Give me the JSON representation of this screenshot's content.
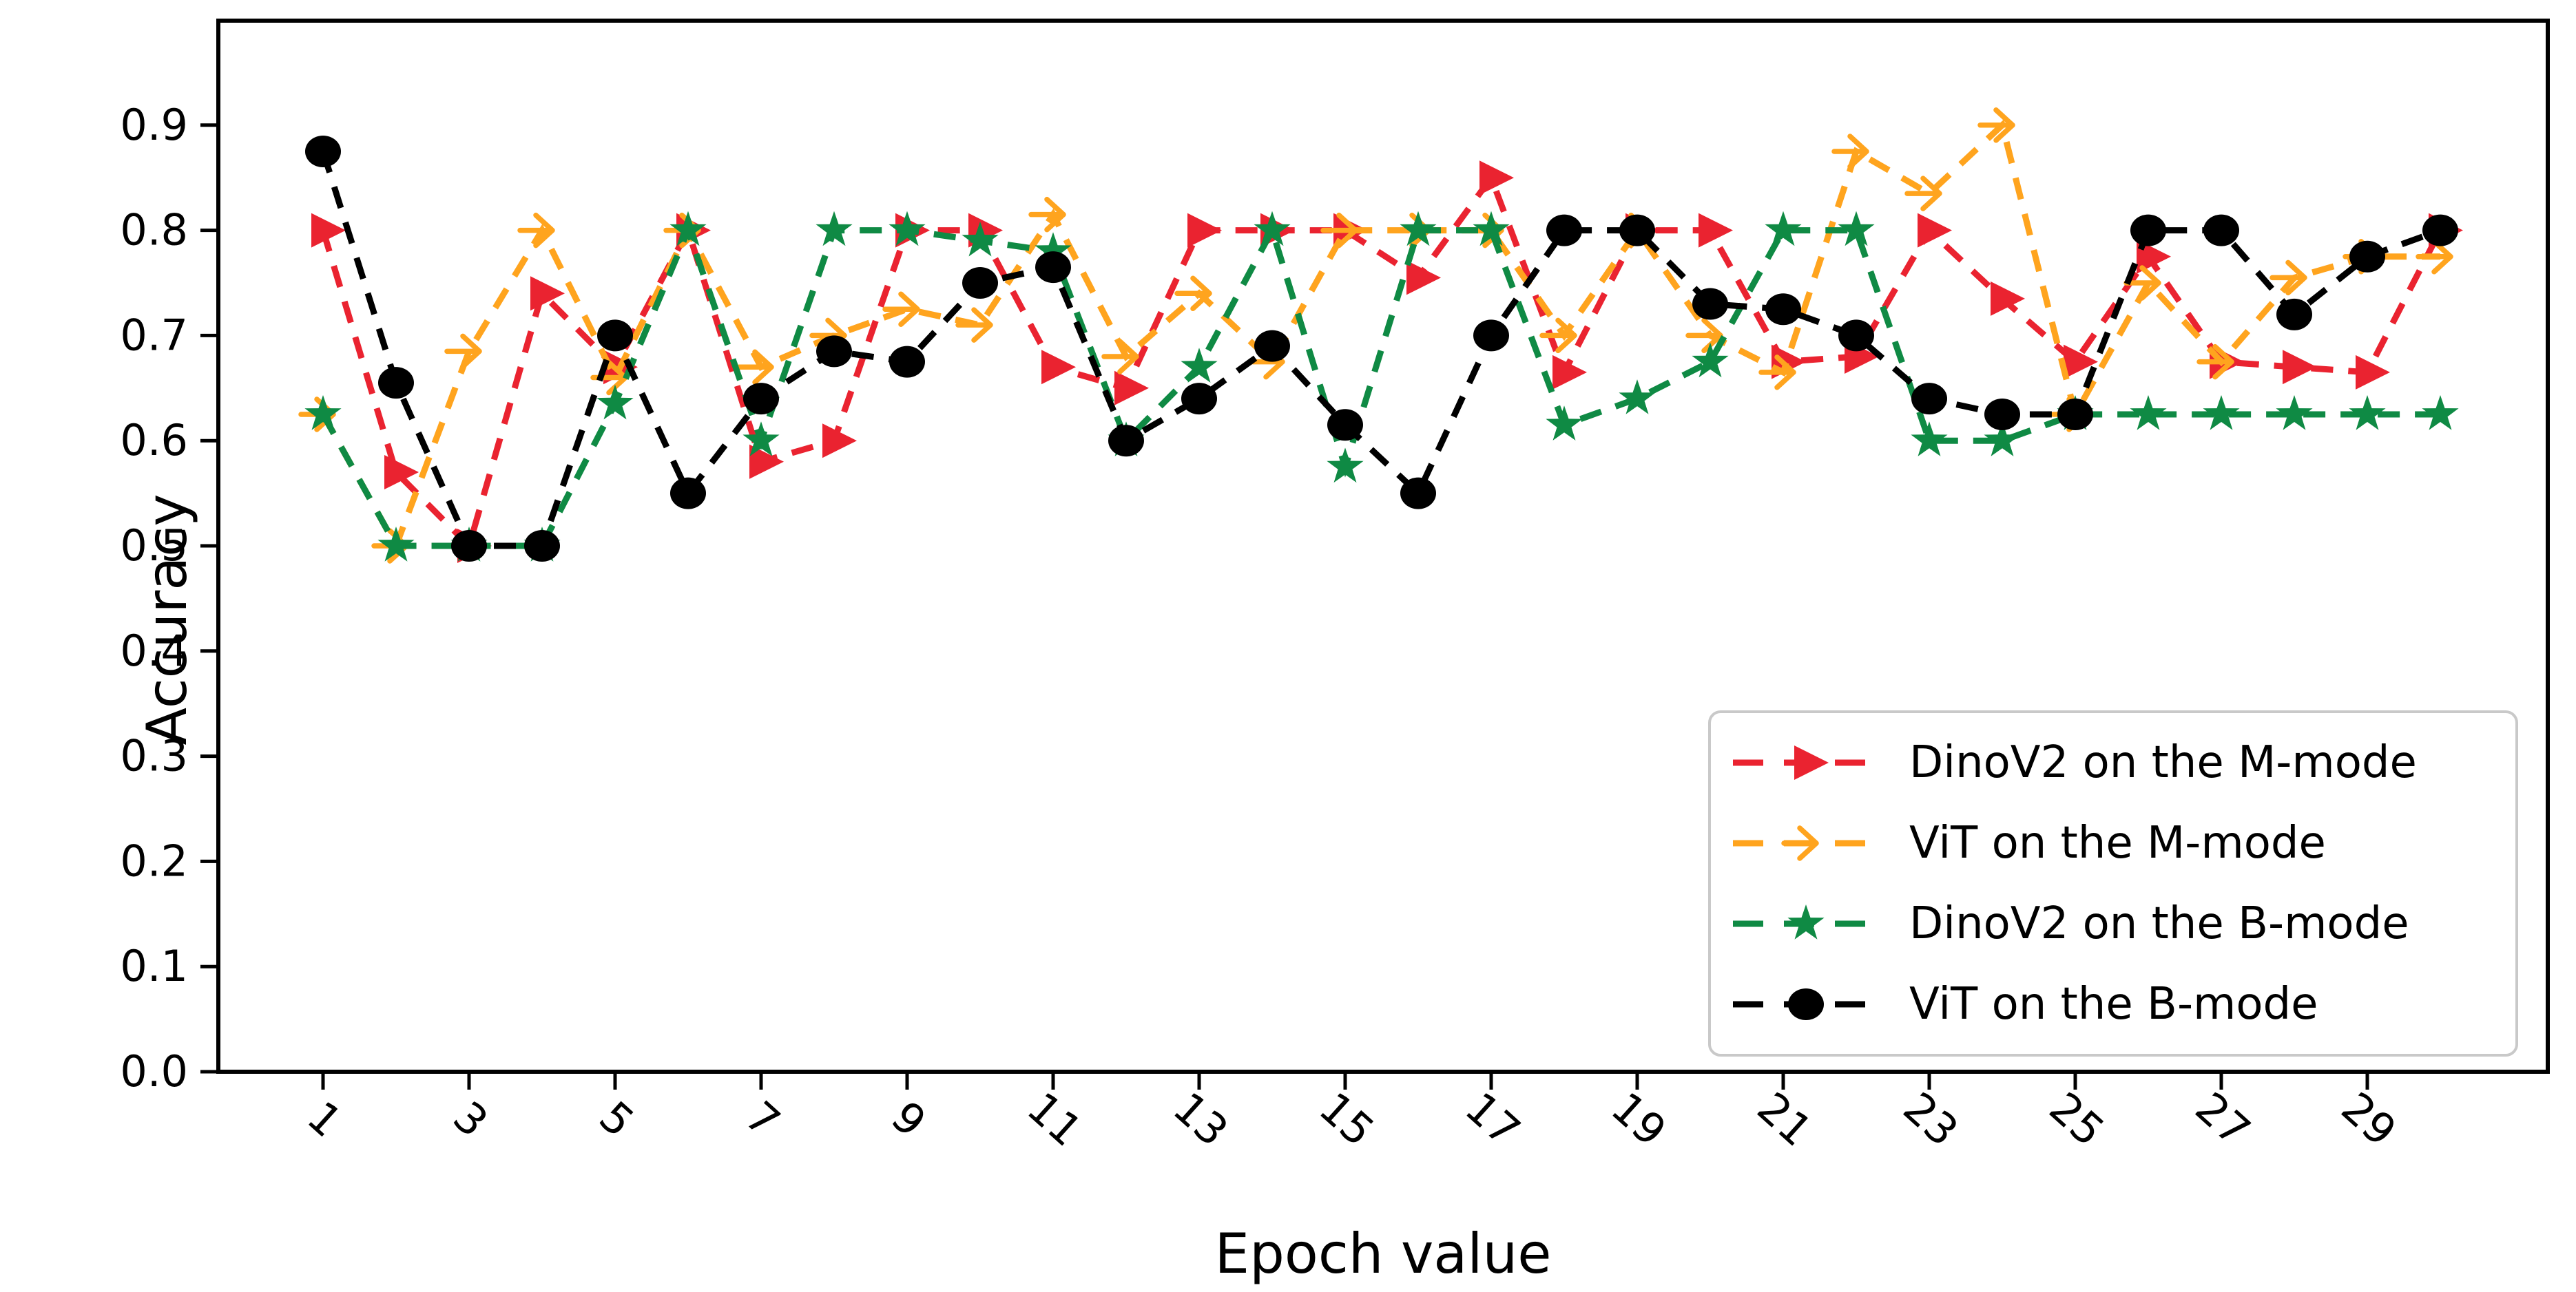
{
  "chart_data": {
    "type": "line",
    "title": "",
    "xlabel": "Epoch value",
    "ylabel": "Accuracy",
    "x": [
      1,
      2,
      3,
      4,
      5,
      6,
      7,
      8,
      9,
      10,
      11,
      12,
      13,
      14,
      15,
      16,
      17,
      18,
      19,
      20,
      21,
      22,
      23,
      24,
      25,
      26,
      27,
      28,
      29,
      30
    ],
    "x_tick_labels": [
      "1",
      "3",
      "5",
      "7",
      "9",
      "11",
      "13",
      "15",
      "17",
      "19",
      "21",
      "23",
      "25",
      "27",
      "29"
    ],
    "x_ticks_at": [
      1,
      3,
      5,
      7,
      9,
      11,
      13,
      15,
      17,
      19,
      21,
      23,
      25,
      27,
      29
    ],
    "y_tick_labels": [
      "0.0",
      "0.1",
      "0.2",
      "0.3",
      "0.4",
      "0.5",
      "0.6",
      "0.7",
      "0.8",
      "0.9"
    ],
    "y_ticks_at": [
      0.0,
      0.1,
      0.2,
      0.3,
      0.4,
      0.5,
      0.6,
      0.7,
      0.8,
      0.9
    ],
    "ylim": [
      0.0,
      1.0
    ],
    "grid": "off",
    "line_style": "dashed",
    "legend_position": "lower right",
    "series": [
      {
        "name": "DinoV2 on the M-mode",
        "color": "#ea2330",
        "marker": "triangle-right",
        "values": [
          0.8,
          0.57,
          0.5,
          0.74,
          0.67,
          0.8,
          0.58,
          0.6,
          0.8,
          0.8,
          0.67,
          0.65,
          0.8,
          0.8,
          0.8,
          0.755,
          0.85,
          0.665,
          0.8,
          0.8,
          0.675,
          0.68,
          0.8,
          0.735,
          0.675,
          0.775,
          0.675,
          0.67,
          0.665,
          0.8
        ]
      },
      {
        "name": "ViT on the M-mode",
        "color": "#ffa41e",
        "marker": "tri-right",
        "values": [
          0.625,
          0.5,
          0.685,
          0.8,
          0.66,
          0.8,
          0.67,
          0.7,
          0.725,
          0.71,
          0.815,
          0.68,
          0.74,
          0.675,
          0.8,
          0.8,
          0.8,
          0.7,
          0.8,
          0.7,
          0.665,
          0.875,
          0.835,
          0.9,
          0.625,
          0.75,
          0.675,
          0.755,
          0.775,
          0.775
        ]
      },
      {
        "name": "DinoV2 on the B-mode",
        "color": "#0f8a44",
        "marker": "star",
        "values": [
          0.625,
          0.5,
          0.5,
          0.5,
          0.635,
          0.8,
          0.6,
          0.8,
          0.8,
          0.79,
          0.78,
          0.6,
          0.67,
          0.8,
          0.575,
          0.8,
          0.8,
          0.615,
          0.64,
          0.675,
          0.8,
          0.8,
          0.6,
          0.6,
          0.625,
          0.625,
          0.625,
          0.625,
          0.625,
          0.625
        ]
      },
      {
        "name": "ViT on the B-mode",
        "color": "#000000",
        "marker": "circle",
        "values": [
          0.875,
          0.655,
          0.5,
          0.5,
          0.7,
          0.55,
          0.64,
          0.685,
          0.675,
          0.75,
          0.765,
          0.6,
          0.64,
          0.69,
          0.615,
          0.55,
          0.7,
          0.8,
          0.8,
          0.73,
          0.725,
          0.7,
          0.64,
          0.625,
          0.625,
          0.8,
          0.8,
          0.72,
          0.775,
          0.8
        ]
      }
    ],
    "axis_color": "#000000",
    "legend_border_color": "#c9c9c9"
  }
}
